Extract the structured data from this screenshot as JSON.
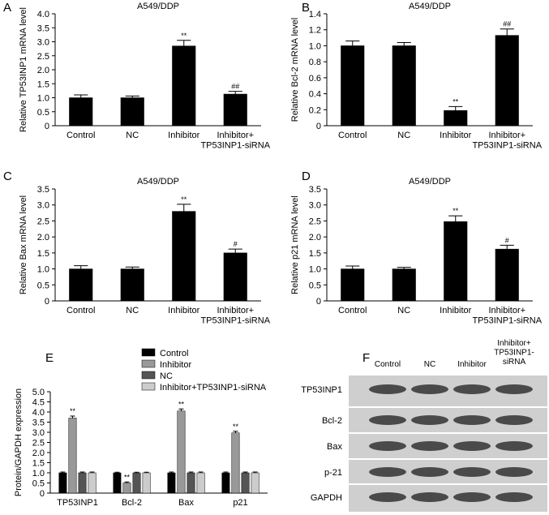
{
  "chart_data": [
    {
      "panel": "A",
      "type": "bar",
      "title": "A549/DDP",
      "ylabel": "Relative TP53INP1 mRNA level",
      "categories": [
        "Control",
        "NC",
        "Inhibitor",
        "Inhibitor+\nTP53INP1-siRNA"
      ],
      "values": [
        1.0,
        1.0,
        2.85,
        1.13
      ],
      "errors": [
        0.1,
        0.06,
        0.2,
        0.1
      ],
      "annotations": [
        null,
        null,
        "**",
        "##"
      ],
      "color": "#000000",
      "ylim": [
        0,
        4
      ],
      "yticks": [
        0,
        0.5,
        {
          "value": 1,
          "label": "1.0"
        },
        1.5,
        {
          "value": 2,
          "label": "2.0"
        },
        2.5,
        {
          "value": 3,
          "label": "3.0"
        },
        3.5,
        {
          "value": 4,
          "label": "4.0"
        }
      ]
    },
    {
      "panel": "B",
      "type": "bar",
      "title": "A549/DDP",
      "ylabel": "Relative Bcl-2 mRNA level",
      "categories": [
        "Control",
        "NC",
        "Inhibitor",
        "Inhibitor+\nTP53INP1-siRNA"
      ],
      "values": [
        1.0,
        1.0,
        0.19,
        1.13
      ],
      "errors": [
        0.06,
        0.04,
        0.05,
        0.08
      ],
      "annotations": [
        null,
        null,
        "**",
        "##"
      ],
      "color": "#000000",
      "ylim": [
        0,
        1.4
      ],
      "yticks": [
        0,
        0.2,
        0.4,
        0.6,
        0.8,
        {
          "value": 1,
          "label": "1.0"
        },
        1.2,
        1.4
      ]
    },
    {
      "panel": "C",
      "type": "bar",
      "title": "A549/DDP",
      "ylabel": "Relative Bax mRNA level",
      "categories": [
        "Control",
        "NC",
        "Inhibitor",
        "Inhibitor+\nTP53INP1-siRNA"
      ],
      "values": [
        1.0,
        1.0,
        2.8,
        1.5
      ],
      "errors": [
        0.1,
        0.06,
        0.22,
        0.12
      ],
      "annotations": [
        null,
        null,
        "**",
        "#"
      ],
      "color": "#000000",
      "ylim": [
        0,
        3.5
      ],
      "yticks": [
        0,
        0.5,
        {
          "value": 1,
          "label": "1.0"
        },
        1.5,
        {
          "value": 2,
          "label": "2.0"
        },
        2.5,
        {
          "value": 3,
          "label": "3.0"
        },
        3.5
      ]
    },
    {
      "panel": "D",
      "type": "bar",
      "title": "A549/DDP",
      "ylabel": "Relative p21 mRNA level",
      "categories": [
        "Control",
        "NC",
        "Inhibitor",
        "Inhibitor+\nTP53INP1-siRNA"
      ],
      "values": [
        1.0,
        1.0,
        2.48,
        1.62
      ],
      "errors": [
        0.09,
        0.05,
        0.18,
        0.12
      ],
      "annotations": [
        null,
        null,
        "**",
        "#"
      ],
      "color": "#000000",
      "ylim": [
        0,
        3.5
      ],
      "yticks": [
        0,
        0.5,
        {
          "value": 1,
          "label": "1.0"
        },
        1.5,
        {
          "value": 2,
          "label": "2.0"
        },
        2.5,
        {
          "value": 3,
          "label": "3.0"
        },
        3.5
      ]
    },
    {
      "panel": "E",
      "type": "grouped-bar",
      "ylabel": "Protein/GAPDH expression",
      "categories": [
        "TP53INP1",
        "Bcl-2",
        "Bax",
        "p21"
      ],
      "series": [
        {
          "name": "Control",
          "color": "#000000",
          "values": [
            1.0,
            1.0,
            1.0,
            1.0
          ],
          "errors": [
            0.04,
            0.03,
            0.04,
            0.04
          ],
          "annotations": [
            null,
            null,
            null,
            null
          ]
        },
        {
          "name": "Inhibitor",
          "color": "#999999",
          "values": [
            3.7,
            0.5,
            4.05,
            2.97
          ],
          "errors": [
            0.1,
            0.05,
            0.1,
            0.08
          ],
          "annotations": [
            "**",
            "**",
            "**",
            "**"
          ]
        },
        {
          "name": "NC",
          "color": "#555555",
          "values": [
            1.0,
            1.0,
            1.0,
            1.0
          ],
          "errors": [
            0.04,
            0.03,
            0.04,
            0.04
          ],
          "annotations": [
            null,
            null,
            null,
            null
          ]
        },
        {
          "name": "Inhibitor+TP53INP1-siRNA",
          "color": "#cccccc",
          "values": [
            1.0,
            1.0,
            1.0,
            1.0
          ],
          "errors": [
            0.04,
            0.03,
            0.04,
            0.04
          ],
          "annotations": [
            null,
            null,
            null,
            null
          ]
        }
      ],
      "ylim": [
        0,
        5
      ],
      "yticks": [
        0,
        0.5,
        {
          "value": 1,
          "label": "1.0"
        },
        1.5,
        {
          "value": 2,
          "label": "2.0"
        },
        2.5,
        {
          "value": 3,
          "label": "3.0"
        },
        3.5,
        {
          "value": 4,
          "label": "4.0"
        },
        4.5,
        {
          "value": 5,
          "label": "5.0"
        }
      ]
    }
  ],
  "blot": {
    "panel": "F",
    "columns": [
      "Control",
      "NC",
      "Inhibitor",
      "Inhibitor+\nTP53INP1-\nsiRNA"
    ],
    "rows": [
      "TP53INP1",
      "Bcl-2",
      "Bax",
      "p-21",
      "GAPDH"
    ]
  }
}
